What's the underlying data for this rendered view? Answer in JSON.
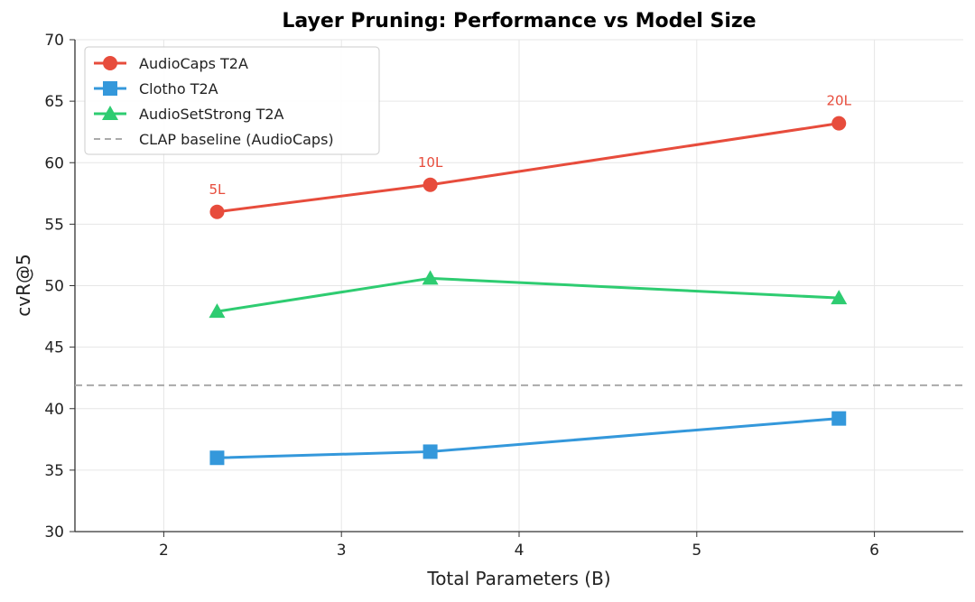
{
  "chart_data": {
    "type": "line",
    "title": "Layer Pruning: Performance vs Model Size",
    "xlabel": "Total Parameters (B)",
    "ylabel": "cvR@5",
    "xlim": [
      1.5,
      6.5
    ],
    "ylim": [
      30,
      70
    ],
    "xticks": [
      2,
      3,
      4,
      5,
      6
    ],
    "yticks": [
      30,
      35,
      40,
      45,
      50,
      55,
      60,
      65,
      70
    ],
    "grid": true,
    "legend_position": "top-left",
    "series": [
      {
        "name": "AudioCaps T2A",
        "color": "#e74c3c",
        "marker": "circle",
        "x": [
          2.3,
          3.5,
          5.8
        ],
        "y": [
          56.0,
          58.2,
          63.2
        ],
        "point_labels": [
          "5L",
          "10L",
          "20L"
        ]
      },
      {
        "name": "Clotho T2A",
        "color": "#3498db",
        "marker": "square",
        "x": [
          2.3,
          3.5,
          5.8
        ],
        "y": [
          36.0,
          36.5,
          39.2
        ]
      },
      {
        "name": "AudioSetStrong T2A",
        "color": "#2ecc71",
        "marker": "triangle",
        "x": [
          2.3,
          3.5,
          5.8
        ],
        "y": [
          47.9,
          50.6,
          49.0
        ]
      }
    ],
    "reference_lines": [
      {
        "name": "CLAP baseline (AudioCaps)",
        "y": 41.9,
        "color": "#aaaaaa",
        "style": "dashed"
      }
    ]
  }
}
